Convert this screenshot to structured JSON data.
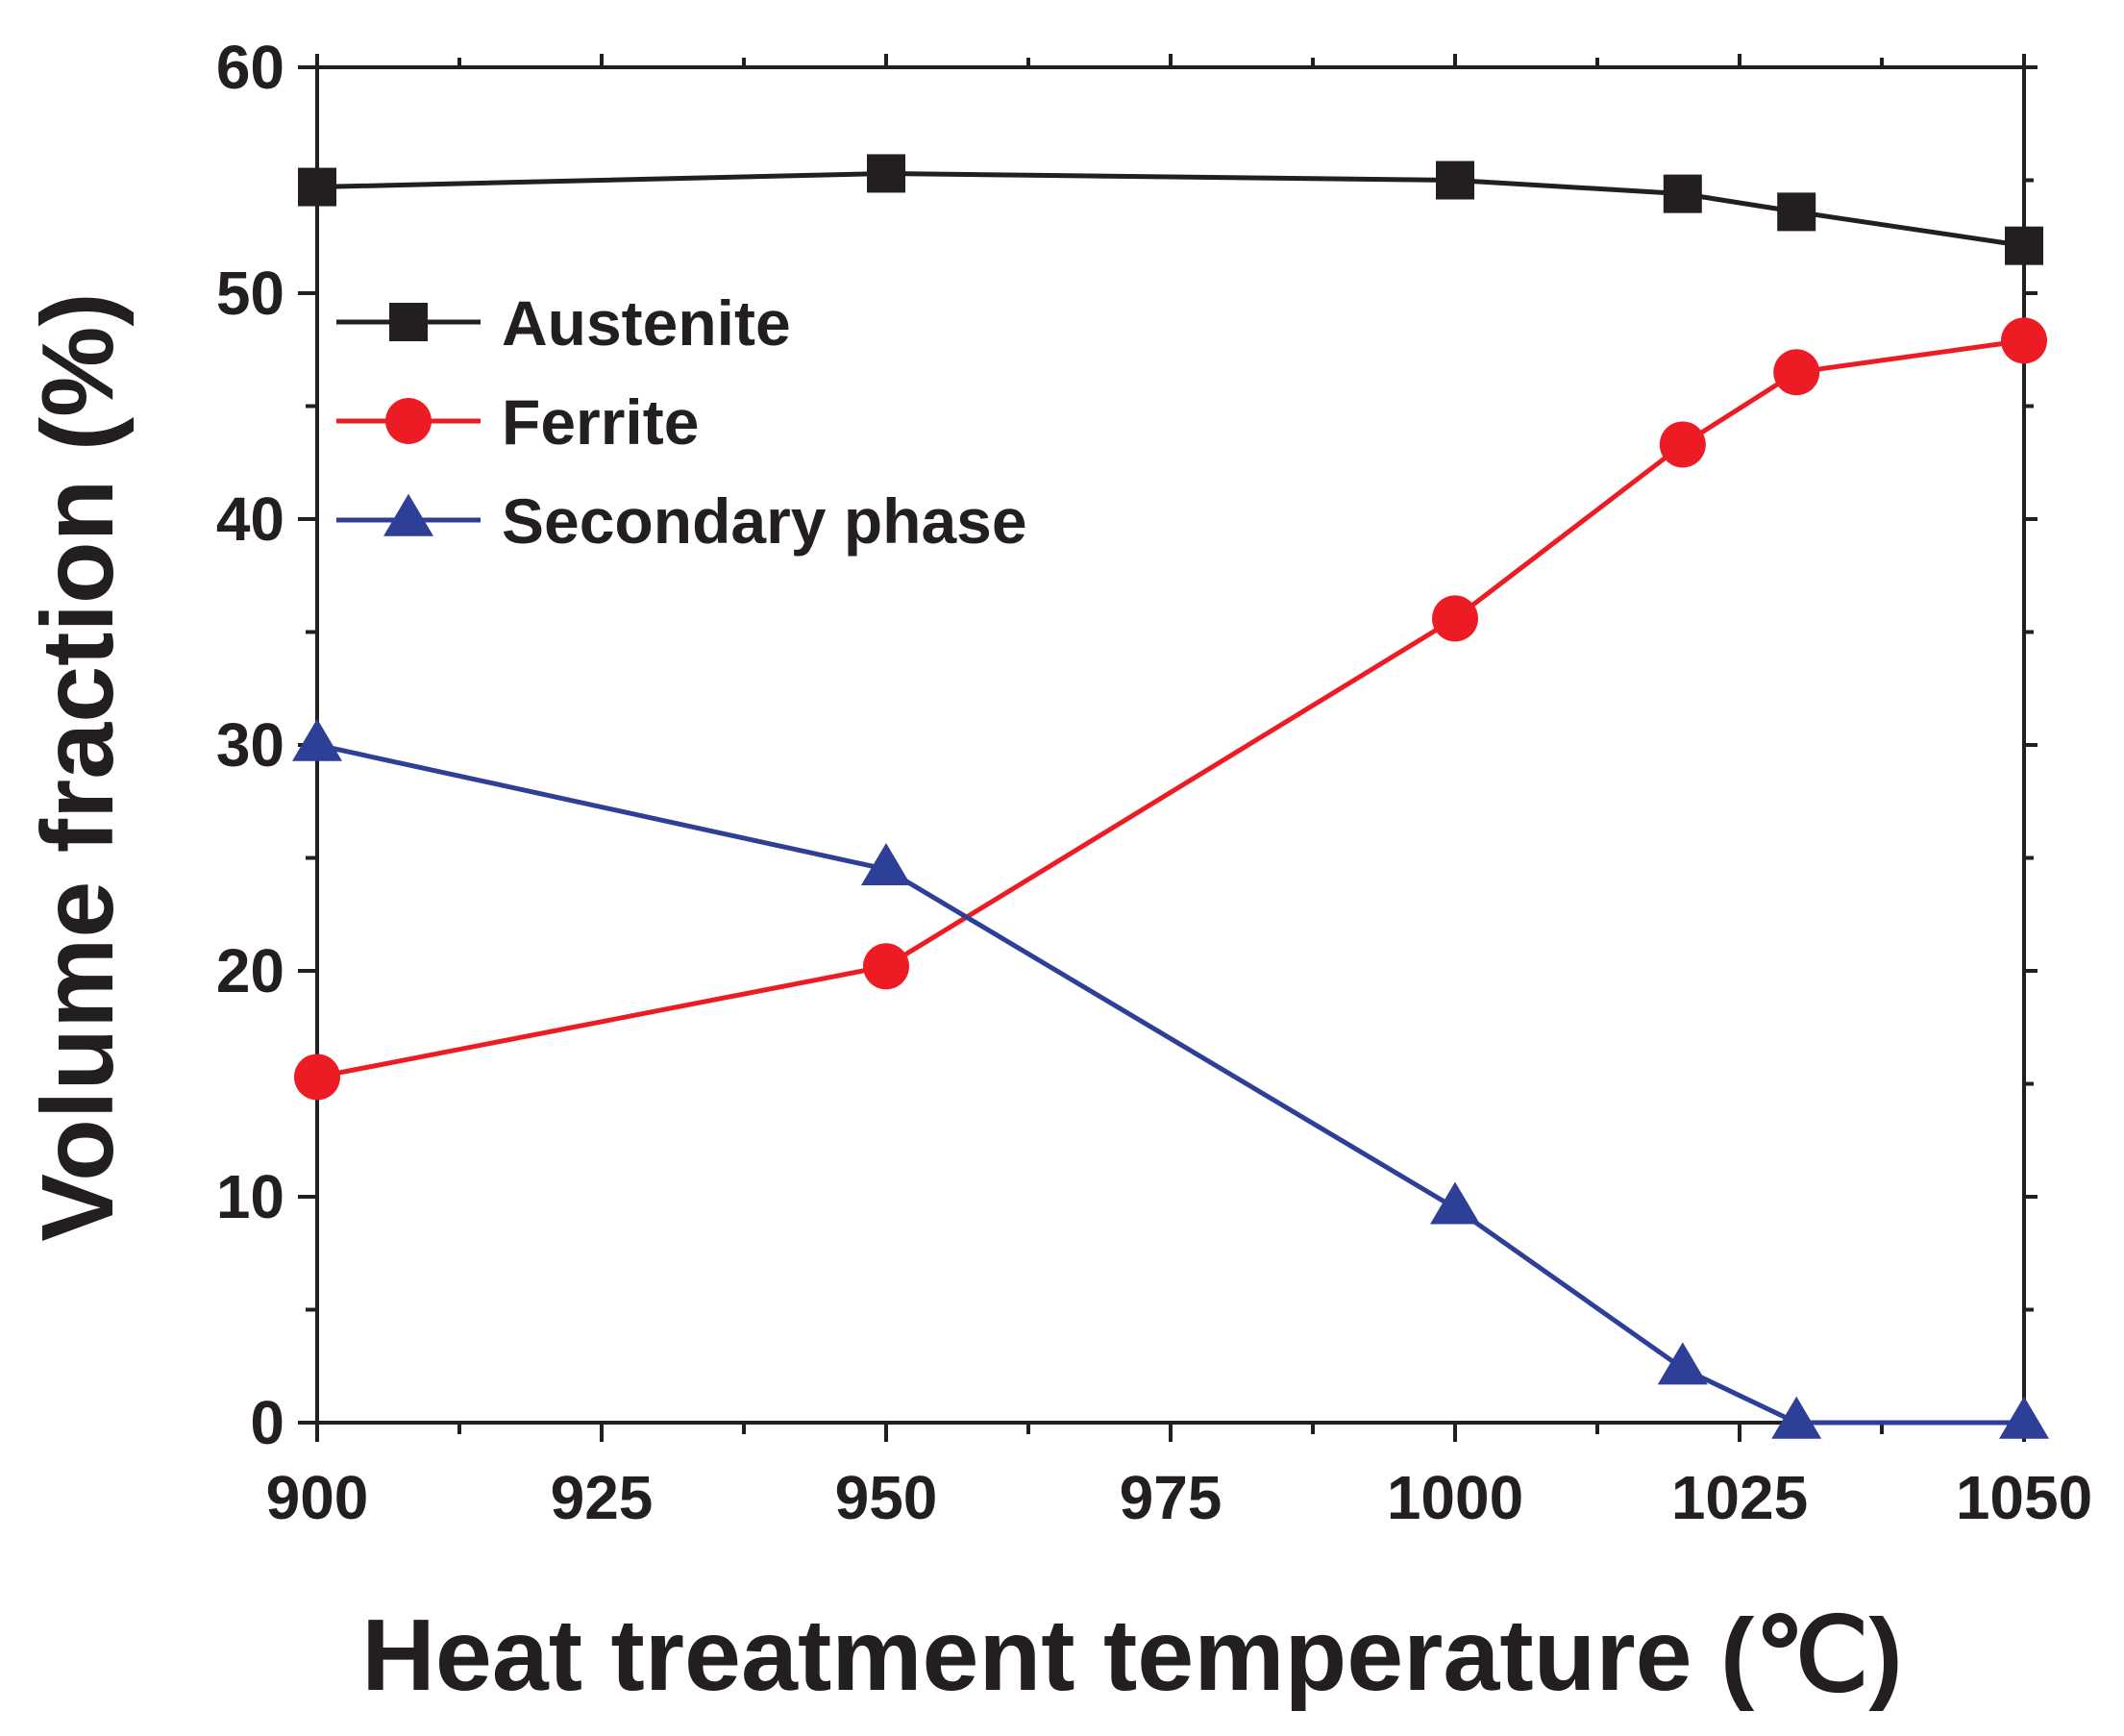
{
  "chart_data": {
    "type": "line",
    "xlabel": "Heat treatment temperature (℃)",
    "ylabel": "Volume fraction (%)",
    "xlim": [
      900,
      1050
    ],
    "ylim": [
      0,
      60
    ],
    "x_ticks": [
      "900",
      "925",
      "950",
      "975",
      "1000",
      "1025",
      "1050"
    ],
    "y_ticks": [
      "0",
      "10",
      "20",
      "30",
      "40",
      "50",
      "60"
    ],
    "grid": false,
    "legend_position": "top-left",
    "x": [
      900,
      950,
      1000,
      1020,
      1030,
      1050
    ],
    "series": [
      {
        "name": "Austenite",
        "marker": "square",
        "color": "#231f20",
        "values": [
          54.7,
          55.3,
          55.0,
          54.4,
          53.6,
          52.1
        ]
      },
      {
        "name": "Ferrite",
        "marker": "circle",
        "color": "#ed1c24",
        "values": [
          15.3,
          20.2,
          35.6,
          43.3,
          46.5,
          47.9
        ]
      },
      {
        "name": "Secondary phase",
        "marker": "triangle",
        "color": "#2e3f98",
        "values": [
          30.0,
          24.5,
          9.5,
          2.4,
          0.0,
          0.0
        ]
      }
    ]
  }
}
